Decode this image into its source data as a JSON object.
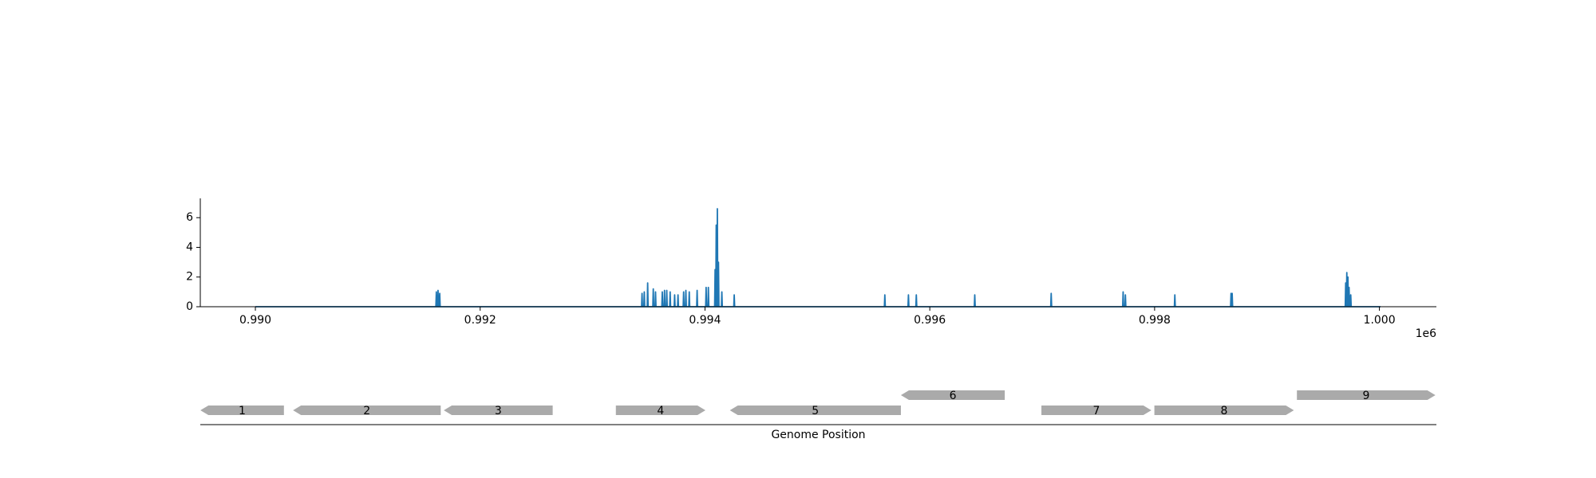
{
  "chart_data": [
    {
      "type": "line",
      "x": [
        990000,
        991606,
        991610,
        991614,
        991621,
        991625,
        991629,
        991636,
        991640,
        991644,
        993436,
        993440,
        993444,
        993456,
        993460,
        993464,
        993486,
        993490,
        993494,
        993536,
        993540,
        993544,
        993556,
        993560,
        993564,
        993616,
        993620,
        993624,
        993636,
        993640,
        993644,
        993656,
        993660,
        993664,
        993686,
        993690,
        993694,
        993726,
        993730,
        993734,
        993756,
        993760,
        993764,
        993806,
        993810,
        993814,
        993826,
        993830,
        993834,
        993856,
        993860,
        993864,
        993926,
        993930,
        993934,
        994006,
        994010,
        994014,
        994026,
        994030,
        994034,
        994086,
        994090,
        994094,
        994096,
        994100,
        994104,
        994106,
        994110,
        994114,
        994116,
        994120,
        994124,
        994146,
        994150,
        994154,
        994256,
        994260,
        994264,
        995596,
        995600,
        995604,
        995806,
        995810,
        995814,
        995876,
        995880,
        995884,
        996396,
        996400,
        996404,
        997076,
        997080,
        997084,
        997716,
        997720,
        997724,
        997736,
        997740,
        997744,
        998176,
        998180,
        998184,
        998676,
        998680,
        998684,
        998686,
        998690,
        998694,
        999696,
        999700,
        999704,
        999706,
        999710,
        999714,
        999716,
        999720,
        999724,
        999726,
        999730,
        999734,
        999741,
        999745,
        999749,
        1000010
      ],
      "series": [
        {
          "color": "#1f77b4",
          "values": [
            0,
            0,
            1.0,
            0,
            0,
            1.1,
            0,
            0,
            0.9,
            0,
            0,
            0.9,
            0,
            0,
            1.0,
            0,
            0,
            1.6,
            0,
            0,
            1.2,
            0,
            0,
            1.0,
            0,
            0,
            1.0,
            0,
            0,
            1.1,
            0,
            0,
            1.1,
            0,
            0,
            1.0,
            0,
            0,
            0.8,
            0,
            0,
            0.8,
            0,
            0,
            1.0,
            0,
            0,
            1.1,
            0,
            0,
            1.0,
            0,
            0,
            1.1,
            0,
            0,
            1.3,
            0,
            0,
            1.3,
            0,
            0,
            2.5,
            0,
            0,
            5.5,
            0,
            0,
            6.6,
            0,
            0,
            3.0,
            0,
            0,
            1.0,
            0,
            0,
            0.8,
            0,
            0,
            0.8,
            0,
            0,
            0.8,
            0,
            0,
            0.8,
            0,
            0,
            0.8,
            0,
            0,
            0.9,
            0,
            0,
            1.0,
            0,
            0,
            0.8,
            0,
            0,
            0.8,
            0,
            0,
            0.9,
            0,
            0,
            0.9,
            0,
            0,
            1.6,
            0,
            0,
            2.3,
            0,
            0,
            2.0,
            0,
            0,
            1.3,
            0,
            0,
            0.8,
            0,
            0
          ]
        }
      ],
      "xlim": [
        989510,
        1000507
      ],
      "ylim": [
        0,
        7.3
      ],
      "yticks": [
        0,
        2,
        4,
        6
      ],
      "xticks": [
        {
          "value": 990000,
          "label": "0.990"
        },
        {
          "value": 992000,
          "label": "0.992"
        },
        {
          "value": 994000,
          "label": "0.994"
        },
        {
          "value": 996000,
          "label": "0.996"
        },
        {
          "value": 998000,
          "label": "0.998"
        },
        {
          "value": 1000000,
          "label": "1.000"
        }
      ],
      "x_offset_label": "1e6"
    },
    {
      "type": "genes",
      "xlabel": "Genome Position",
      "xlim": [
        989510,
        1000507
      ],
      "color": "#aaaaaa",
      "genes": [
        {
          "label": "1",
          "start": 989511,
          "end": 990254,
          "strand": -1,
          "level": 0
        },
        {
          "label": "2",
          "start": 990335,
          "end": 991649,
          "strand": -1,
          "level": 0
        },
        {
          "label": "3",
          "start": 991676,
          "end": 992645,
          "strand": -1,
          "level": 0
        },
        {
          "label": "4",
          "start": 993207,
          "end": 994004,
          "strand": 1,
          "level": 0
        },
        {
          "label": "5",
          "start": 994221,
          "end": 995743,
          "strand": -1,
          "level": 0
        },
        {
          "label": "6",
          "start": 995743,
          "end": 996667,
          "strand": -1,
          "level": 1
        },
        {
          "label": "7",
          "start": 996993,
          "end": 997971,
          "strand": 1,
          "level": 0
        },
        {
          "label": "8",
          "start": 997998,
          "end": 999239,
          "strand": 1,
          "level": 0
        },
        {
          "label": "9",
          "start": 999266,
          "end": 1000498,
          "strand": 1,
          "level": 1
        }
      ]
    }
  ]
}
